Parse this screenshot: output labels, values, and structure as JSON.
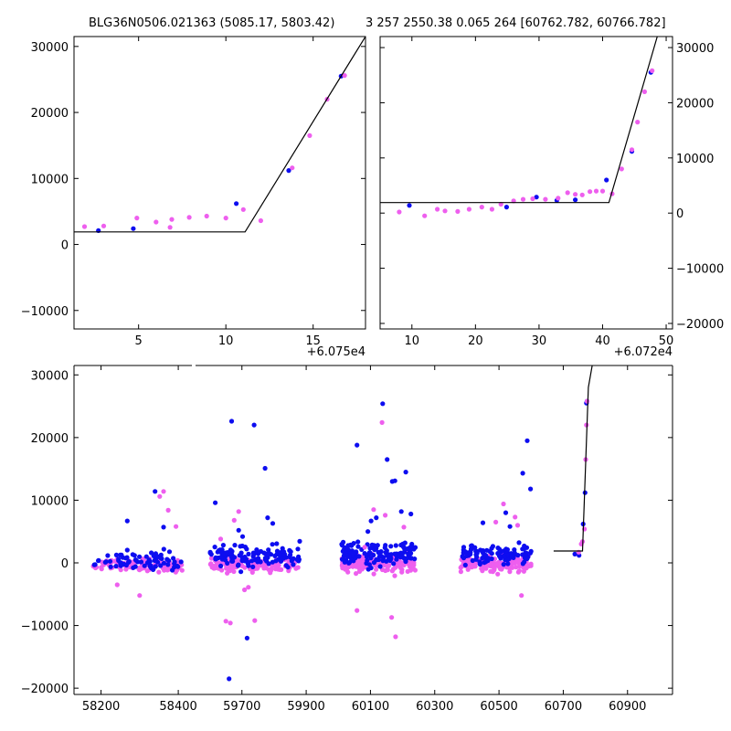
{
  "colors": {
    "series_a": "#0d0df0",
    "series_b": "#ee5fee",
    "model_line": "#000000",
    "axes": "#000000",
    "background": "#ffffff"
  },
  "chart_data": [
    {
      "id": "top-left",
      "type": "scatter",
      "title": "BLG36N0506.021363 (5085.17, 5803.42)",
      "xlabel": "",
      "ylabel": "",
      "x_offset_label": "+6.075e4",
      "xlim": [
        1.3,
        18.0
      ],
      "ylim": [
        -12800,
        31500
      ],
      "xticks": [
        5,
        10,
        15
      ],
      "yticks": [
        -10000,
        0,
        10000,
        20000,
        30000
      ],
      "ytick_side": "left",
      "series": [
        {
          "name": "series_a",
          "color": "#0d0df0",
          "x": [
            2.7,
            4.7,
            10.6,
            13.6,
            16.6
          ],
          "y": [
            2100,
            2400,
            6200,
            11200,
            25500
          ]
        },
        {
          "name": "series_b",
          "color": "#ee5fee",
          "x": [
            1.9,
            3.0,
            4.9,
            6.0,
            6.8,
            6.9,
            7.9,
            8.9,
            10.0,
            11.0,
            12.0,
            13.8,
            14.8,
            15.8,
            16.8
          ],
          "y": [
            2700,
            2800,
            4000,
            3400,
            2600,
            3800,
            4100,
            4300,
            4000,
            5300,
            3600,
            11600,
            16500,
            22000,
            25600
          ]
        }
      ],
      "model_line": {
        "x": [
          1.3,
          11.1,
          18.0
        ],
        "y": [
          1900,
          1900,
          31500
        ]
      }
    },
    {
      "id": "top-right",
      "type": "scatter",
      "title": "3 257 2550.38 0.065 264 [60762.782, 60766.782]",
      "xlabel": "",
      "ylabel": "",
      "x_offset_label": "+6.072e4",
      "xlim": [
        5.0,
        51.0
      ],
      "ylim": [
        -21000,
        32000
      ],
      "xticks": [
        10,
        20,
        30,
        40,
        50
      ],
      "yticks": [
        -20000,
        -10000,
        0,
        10000,
        20000,
        30000
      ],
      "ytick_side": "right",
      "series": [
        {
          "name": "series_a",
          "color": "#0d0df0",
          "x": [
            9.6,
            24.9,
            29.6,
            32.8,
            35.7,
            40.6,
            44.6,
            47.6
          ],
          "y": [
            1400,
            1100,
            2900,
            2300,
            2400,
            6000,
            11200,
            25500
          ]
        },
        {
          "name": "series_b",
          "color": "#ee5fee",
          "x": [
            8.0,
            12.0,
            14.0,
            15.2,
            17.2,
            19.0,
            21.0,
            22.6,
            24.0,
            26.0,
            27.5,
            29.0,
            31.0,
            33.0,
            34.5,
            35.7,
            36.8,
            38.0,
            39.0,
            40.0,
            41.5,
            43.0,
            44.6,
            45.5,
            46.6,
            47.8
          ],
          "y": [
            200,
            -500,
            700,
            400,
            300,
            700,
            1100,
            700,
            1600,
            2200,
            2500,
            2600,
            2500,
            2700,
            3700,
            3400,
            3300,
            3900,
            4000,
            4000,
            3500,
            8000,
            11500,
            16500,
            22000,
            25800
          ]
        }
      ],
      "model_line": {
        "x": [
          5.0,
          41.0,
          48.6
        ],
        "y": [
          1900,
          1900,
          32000
        ]
      }
    },
    {
      "id": "bottom",
      "type": "scatter",
      "title": "",
      "xlabel": "",
      "ylabel": "",
      "xlim": [
        58130,
        61040
      ],
      "ylim": [
        -21000,
        31500
      ],
      "xticks": [
        58200,
        58400,
        59700,
        59900,
        60100,
        60300,
        60500,
        60700,
        60900
      ],
      "yticks": [
        -20000,
        -10000,
        0,
        10000,
        20000,
        30000
      ],
      "ytick_side": "left",
      "gaps": [
        [
          58440,
          58460
        ]
      ],
      "note": "bottom axis is piecewise: 58130-58440 and 59550-61040 (broken x-axis)",
      "seasons": [
        {
          "x_start": 58180,
          "x_end": 58410
        },
        {
          "x_start": 59600,
          "x_end": 59880
        },
        {
          "x_start": 60010,
          "x_end": 60240
        },
        {
          "x_start": 60380,
          "x_end": 60600
        }
      ],
      "series": [
        {
          "name": "series_a",
          "color": "#0d0df0",
          "x": [
            58268,
            58340,
            58362,
            59617,
            59660,
            59668,
            59690,
            59702,
            59716,
            59738,
            59772,
            59780,
            59796,
            60058,
            60092,
            60102,
            60118,
            60138,
            60152,
            60168,
            60176,
            60196,
            60210,
            60226,
            60450,
            60521,
            60534,
            60574,
            60588,
            60598,
            60736,
            60749,
            60762,
            60768,
            60772,
            60774
          ],
          "y": [
            6700,
            11400,
            5700,
            9600,
            -18500,
            22600,
            5200,
            4200,
            -12000,
            22000,
            15100,
            7200,
            6300,
            18800,
            5000,
            6700,
            7200,
            25400,
            16500,
            13000,
            13100,
            8200,
            14500,
            7800,
            6400,
            8000,
            5800,
            14300,
            19500,
            11800,
            1400,
            1200,
            6200,
            11200,
            25500,
            25800
          ]
        },
        {
          "name": "series_b",
          "color": "#ee5fee",
          "x": [
            58242,
            58300,
            58352,
            58362,
            58374,
            58394,
            59634,
            59650,
            59664,
            59676,
            59690,
            59708,
            59720,
            59740,
            60058,
            60082,
            60110,
            60136,
            60146,
            60166,
            60178,
            60204,
            60490,
            60514,
            60550,
            60558,
            60570,
            60748,
            60756,
            60760,
            60766,
            60770,
            60772,
            60774
          ],
          "y": [
            -3500,
            -5200,
            10600,
            11400,
            8400,
            5800,
            3800,
            -9300,
            -9600,
            6800,
            8200,
            -4300,
            -3900,
            -9200,
            -7600,
            2500,
            8500,
            22400,
            7600,
            -8700,
            -11800,
            5700,
            6500,
            9400,
            7300,
            6000,
            -5200,
            1700,
            3000,
            3400,
            5400,
            16500,
            22000,
            25800
          ]
        }
      ],
      "clusters": [
        {
          "season": 0,
          "series": "series_b",
          "center": -400,
          "spread": 700,
          "count": 120
        },
        {
          "season": 0,
          "series": "series_a",
          "center": 200,
          "spread": 1100,
          "count": 70
        },
        {
          "season": 1,
          "series": "series_b",
          "center": -300,
          "spread": 800,
          "count": 130
        },
        {
          "season": 1,
          "series": "series_a",
          "center": 1100,
          "spread": 1300,
          "count": 120
        },
        {
          "season": 2,
          "series": "series_b",
          "center": -100,
          "spread": 1100,
          "count": 150
        },
        {
          "season": 2,
          "series": "series_a",
          "center": 1500,
          "spread": 1400,
          "count": 130
        },
        {
          "season": 3,
          "series": "series_b",
          "center": -100,
          "spread": 900,
          "count": 130
        },
        {
          "season": 3,
          "series": "series_a",
          "center": 1300,
          "spread": 1100,
          "count": 100
        }
      ],
      "model_line": {
        "x": [
          60670,
          60760,
          60778,
          60790
        ],
        "y": [
          1900,
          1900,
          28000,
          31500
        ]
      }
    }
  ]
}
